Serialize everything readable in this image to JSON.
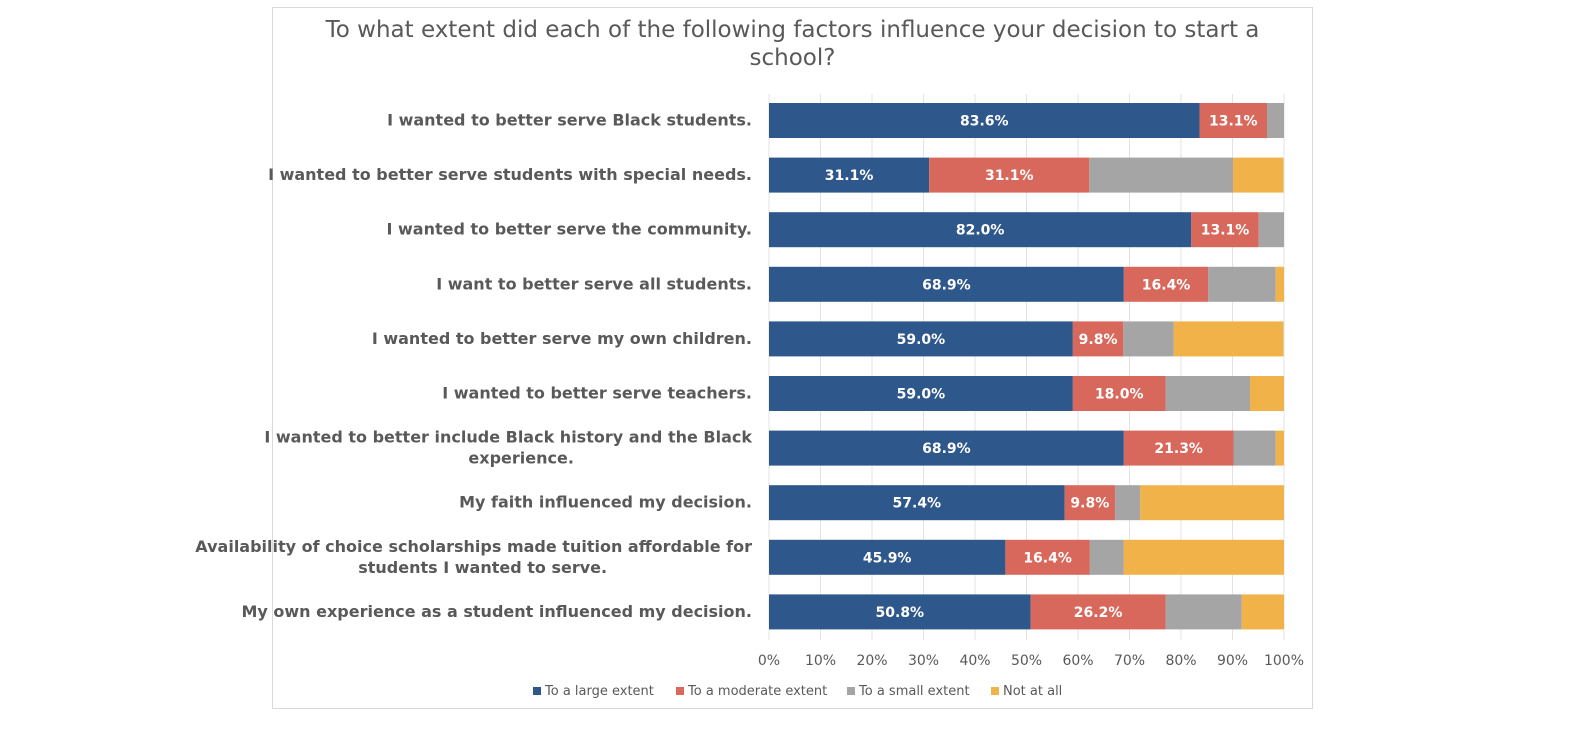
{
  "chart_data": {
    "type": "bar",
    "orientation": "horizontal",
    "stacked": true,
    "title_lines": [
      "To what extent did each of the following factors influence your decision to start a",
      "school?"
    ],
    "categories": [
      [
        "I wanted to better serve Black students."
      ],
      [
        "I wanted to better serve students with special needs."
      ],
      [
        "I wanted to better serve the community."
      ],
      [
        "I want to better serve all students."
      ],
      [
        "I wanted to better serve my own children."
      ],
      [
        "I wanted to better serve teachers."
      ],
      [
        "I wanted to better include Black history and the Black",
        "experience."
      ],
      [
        "My faith influenced my decision."
      ],
      [
        "Availability of choice scholarships made tuition affordable for",
        "students I wanted to serve."
      ],
      [
        "My own experience as a student influenced my decision."
      ]
    ],
    "series": [
      {
        "name": "To a large extent",
        "color": "#2e578c",
        "values": [
          83.6,
          31.1,
          82.0,
          68.9,
          59.0,
          59.0,
          68.9,
          57.4,
          45.9,
          50.8
        ],
        "labels": [
          "83.6%",
          "31.1%",
          "82.0%",
          "68.9%",
          "59.0%",
          "59.0%",
          "68.9%",
          "57.4%",
          "45.9%",
          "50.8%"
        ]
      },
      {
        "name": "To a moderate extent",
        "color": "#d9685c",
        "values": [
          13.1,
          31.1,
          13.1,
          16.4,
          9.8,
          18.0,
          21.3,
          9.8,
          16.4,
          26.2
        ],
        "labels": [
          "13.1%",
          "31.1%",
          "13.1%",
          "16.4%",
          "9.8%",
          "18.0%",
          "21.3%",
          "9.8%",
          "16.4%",
          "26.2%"
        ]
      },
      {
        "name": "To a small extent",
        "color": "#a5a5a5",
        "values": [
          3.3,
          27.9,
          4.9,
          13.1,
          9.8,
          16.4,
          8.2,
          4.9,
          6.6,
          14.8
        ],
        "labels": [
          "",
          "",
          "",
          "",
          "",
          "",
          "",
          "",
          "",
          ""
        ]
      },
      {
        "name": "Not at all",
        "color": "#f2b24a",
        "values": [
          0.0,
          9.8,
          0.0,
          1.6,
          21.3,
          6.6,
          1.6,
          28.0,
          31.1,
          8.2
        ],
        "labels": [
          "",
          "",
          "",
          "",
          "",
          "",
          "",
          "",
          "",
          ""
        ]
      }
    ],
    "xlim": [
      0,
      100
    ],
    "x_ticks": [
      "0%",
      "10%",
      "20%",
      "30%",
      "40%",
      "50%",
      "60%",
      "70%",
      "80%",
      "90%",
      "100%"
    ],
    "grid": true,
    "legend_position": "bottom"
  }
}
